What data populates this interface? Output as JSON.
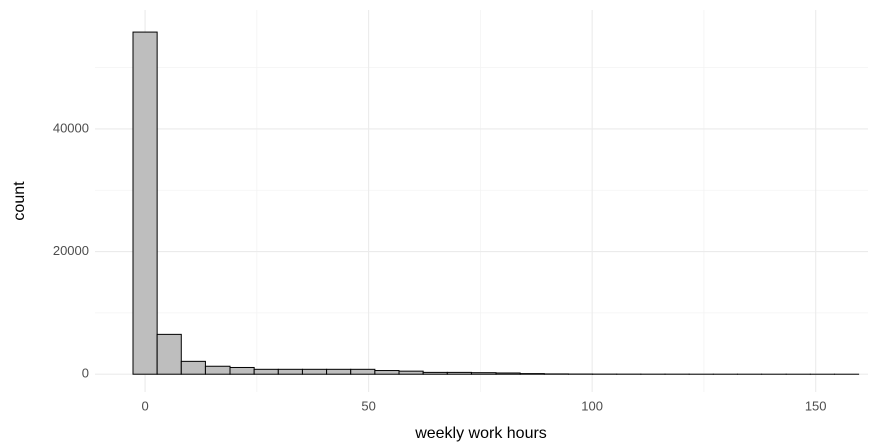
{
  "chart_data": {
    "type": "histogram",
    "xlabel": "weekly work hours",
    "ylabel": "count",
    "bins": [
      -2.7,
      2.7,
      8.1,
      13.5,
      19.0,
      24.4,
      29.8,
      35.2,
      40.6,
      46.0,
      51.4,
      56.8,
      62.2,
      67.6,
      73.0,
      78.5,
      83.9,
      89.3,
      94.7,
      100.1,
      105.5,
      110.9,
      116.3,
      121.7,
      127.1,
      132.5,
      137.9,
      143.4,
      148.8,
      154.2,
      159.6
    ],
    "counts": [
      55800,
      6500,
      2100,
      1300,
      1100,
      800,
      800,
      800,
      800,
      800,
      600,
      500,
      300,
      300,
      250,
      200,
      100,
      50,
      30,
      20,
      15,
      10,
      10,
      5,
      5,
      5,
      3,
      2,
      1,
      1
    ],
    "color": "#bebebe",
    "edgecolor": "#000000",
    "xlim": [
      -11.2,
      161.7
    ],
    "ylim": [
      -2900,
      59400
    ],
    "xticks": [
      0,
      50,
      100,
      150
    ],
    "yticks": [
      0,
      20000,
      40000
    ],
    "xminor": [
      25,
      75,
      125
    ],
    "yminor": [
      10000,
      30000,
      50000
    ],
    "grid": true
  }
}
